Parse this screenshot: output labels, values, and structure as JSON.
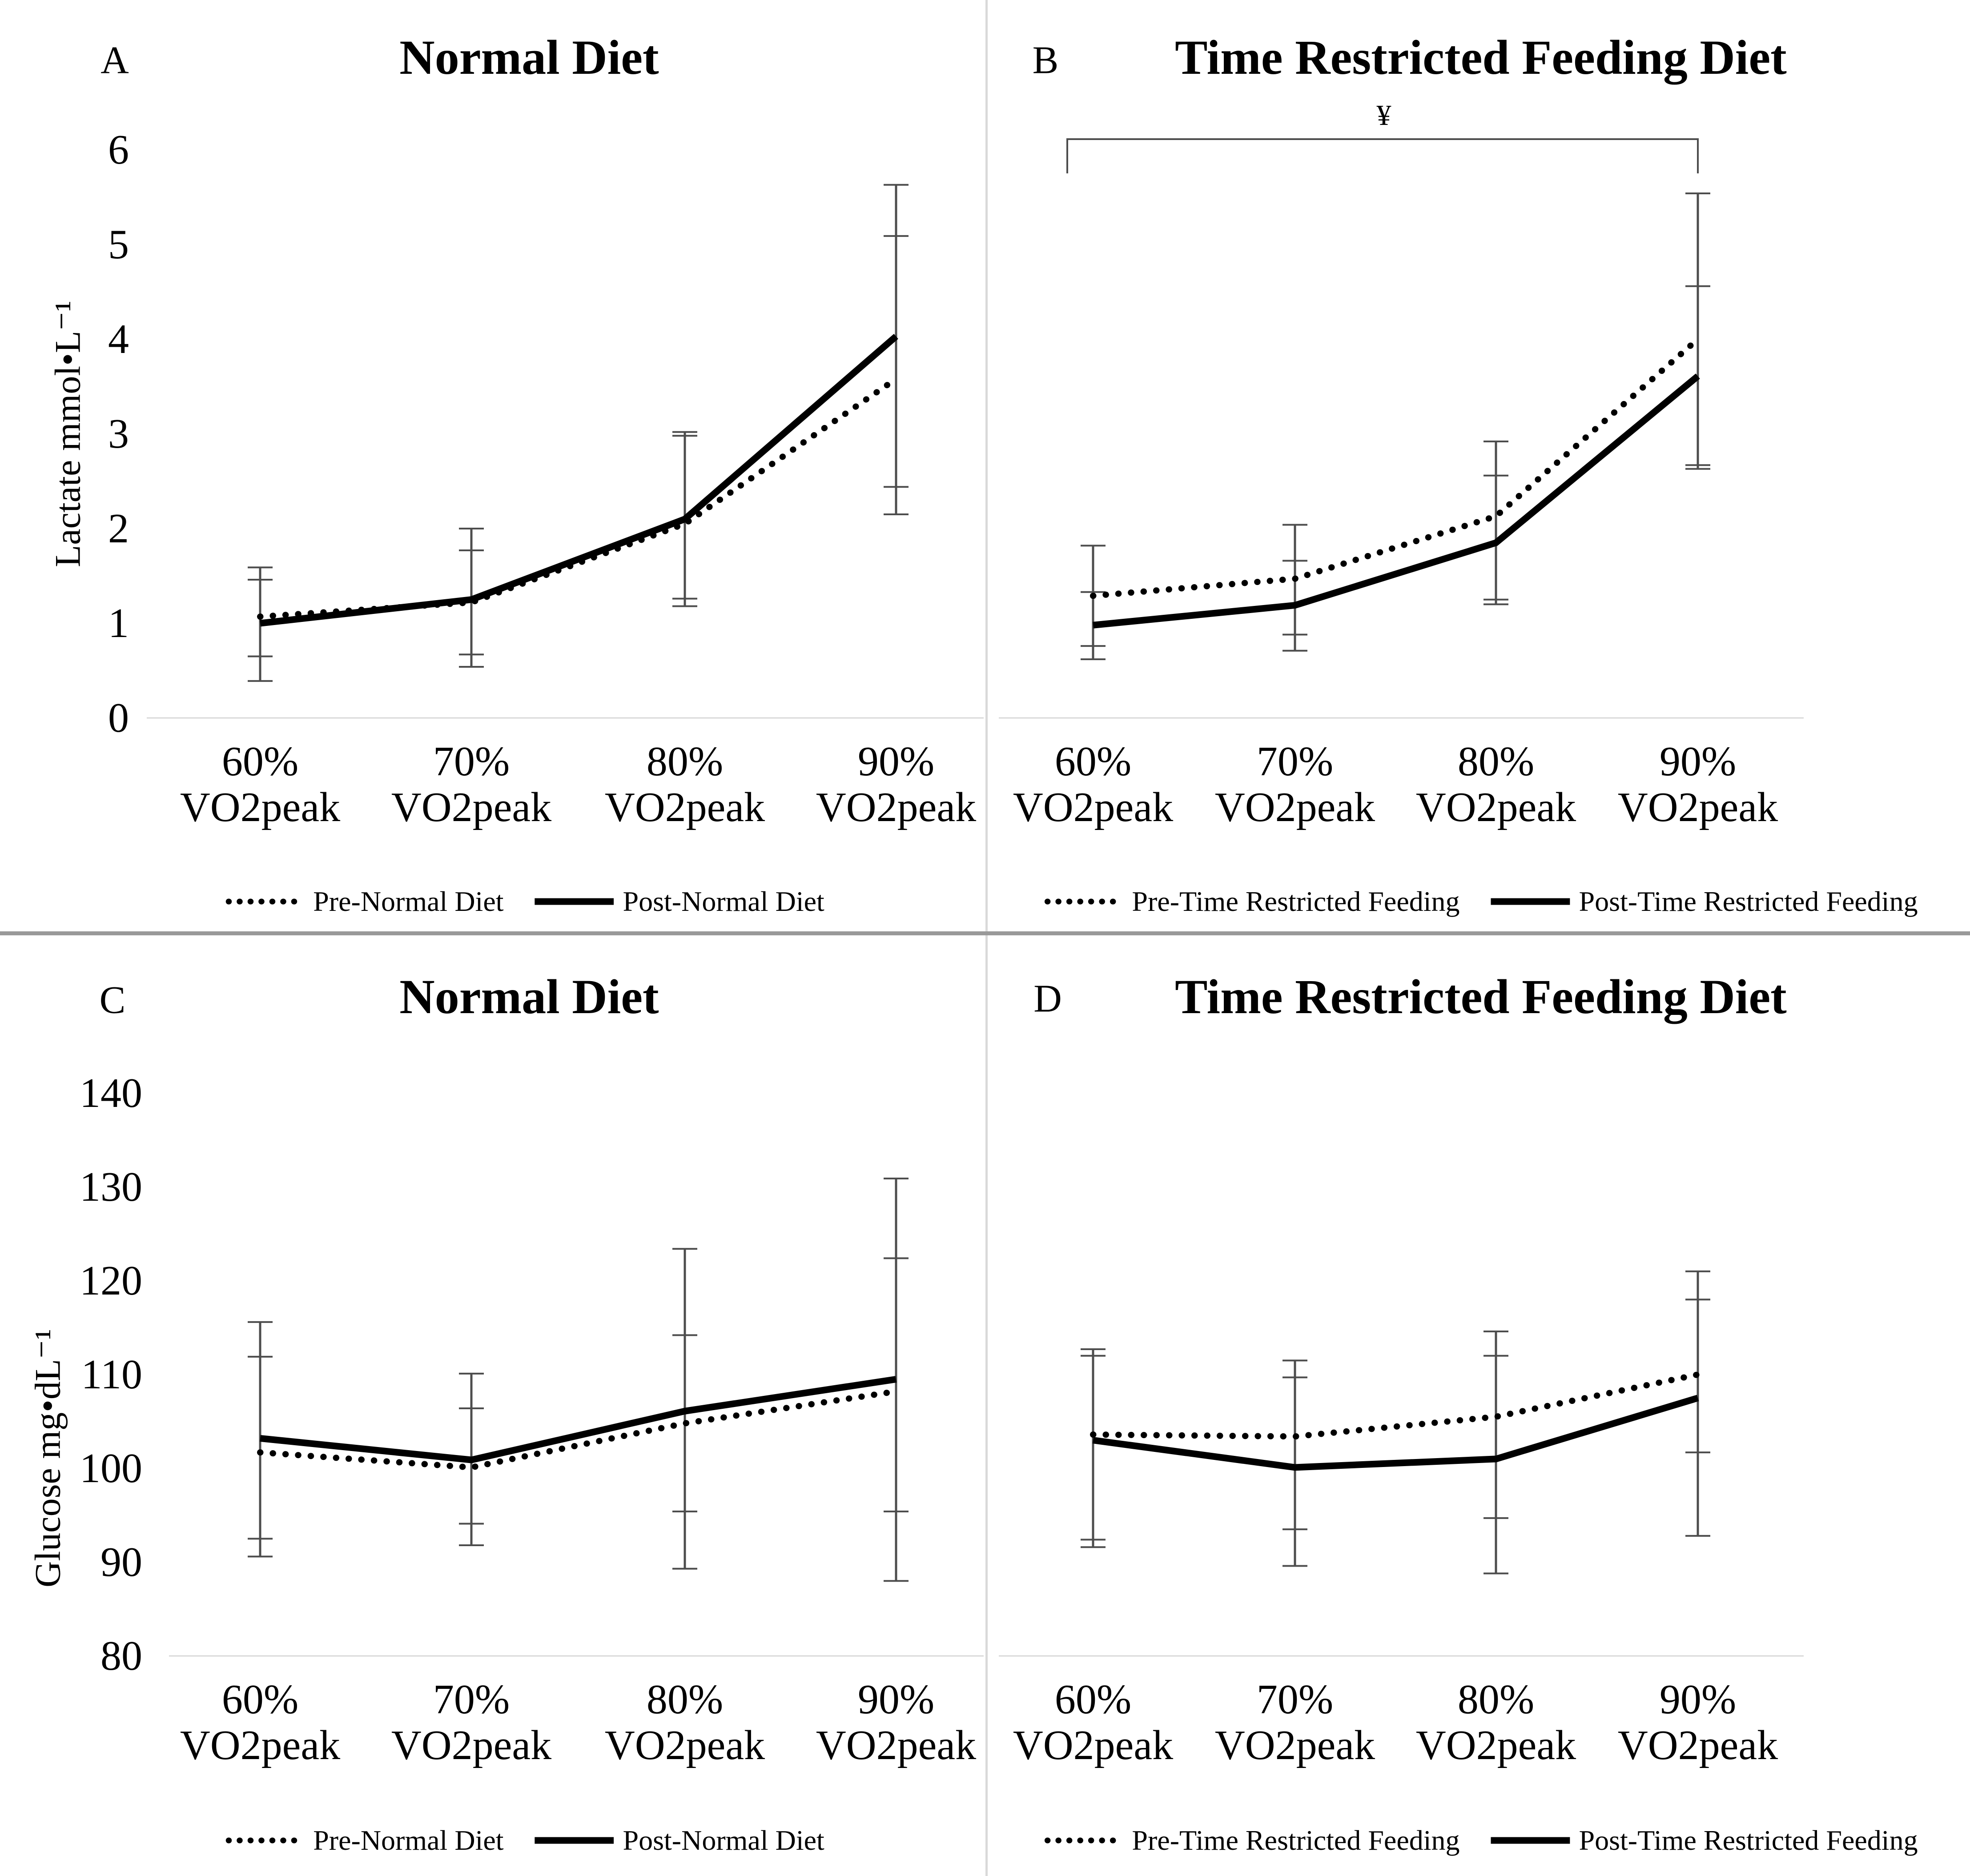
{
  "figure": {
    "background": "#ffffff",
    "text_color": "#000000",
    "line_color": "#000000",
    "error_bar_color": "#4d4d4d",
    "baseline_color": "#d9d9d9",
    "divider_color_vertical": "#d9d9d9",
    "divider_color_horizontal": "#999999"
  },
  "chart_data": [
    {
      "panel": "A",
      "type": "line",
      "title": "Normal Diet",
      "y_label": "Lactate mmol•L⁻¹",
      "y_ticks": [
        0,
        1,
        2,
        3,
        4,
        5,
        6
      ],
      "ylim": [
        0,
        6.2
      ],
      "grid": false,
      "legend_position": "bottom",
      "x_categories": [
        "60%",
        "70%",
        "80%",
        "90%"
      ],
      "x_category_unit": "VO2peak",
      "series": [
        {
          "name": "Pre-Normal Diet",
          "style": "dotted",
          "values": [
            1.07,
            1.22,
            2.05,
            3.58
          ],
          "err_low": [
            0.65,
            0.67,
            1.26,
            2.44
          ],
          "err_high": [
            1.46,
            1.77,
            2.98,
            5.09
          ]
        },
        {
          "name": "Post-Normal Diet",
          "style": "solid",
          "values": [
            1.0,
            1.25,
            2.1,
            4.03
          ],
          "err_low": [
            0.39,
            0.54,
            1.18,
            2.15
          ],
          "err_high": [
            1.59,
            2.0,
            3.02,
            5.63
          ]
        }
      ]
    },
    {
      "panel": "B",
      "type": "line",
      "title": "Time Restricted Feeding Diet",
      "y_label": "",
      "y_ticks": [],
      "ylim": [
        0,
        6.2
      ],
      "grid": false,
      "legend_position": "bottom",
      "x_categories": [
        "60%",
        "70%",
        "80%",
        "90%"
      ],
      "x_category_unit": "VO2peak",
      "annotation": {
        "symbol": "¥",
        "from_index": 0,
        "to_index": 3
      },
      "series": [
        {
          "name": "Pre-Time Restricted Feeding",
          "style": "dotted",
          "values": [
            1.29,
            1.47,
            2.13,
            4.0
          ],
          "err_low": [
            0.76,
            0.88,
            1.25,
            2.67
          ],
          "err_high": [
            1.82,
            2.04,
            2.56,
            4.56
          ]
        },
        {
          "name": "Post-Time Restricted Feeding",
          "style": "solid",
          "values": [
            0.98,
            1.19,
            1.85,
            3.61
          ],
          "err_low": [
            0.62,
            0.71,
            1.2,
            2.63
          ],
          "err_high": [
            1.33,
            1.66,
            2.92,
            5.54
          ]
        }
      ]
    },
    {
      "panel": "C",
      "type": "line",
      "title": "Normal Diet",
      "y_label": "Glucose mg•dL⁻¹",
      "y_ticks": [
        80,
        90,
        100,
        110,
        120,
        130,
        140
      ],
      "ylim": [
        80,
        145
      ],
      "grid": false,
      "legend_position": "bottom",
      "x_categories": [
        "60%",
        "70%",
        "80%",
        "90%"
      ],
      "x_category_unit": "VO2peak",
      "series": [
        {
          "name": "Pre-Normal Diet",
          "style": "dotted",
          "values": [
            101.7,
            100.1,
            104.8,
            108.2
          ],
          "err_low": [
            92.5,
            94.1,
            95.4,
            95.4
          ],
          "err_high": [
            111.9,
            106.4,
            114.2,
            122.4
          ]
        },
        {
          "name": "Post-Normal Diet",
          "style": "solid",
          "values": [
            103.2,
            100.9,
            106.1,
            109.5
          ],
          "err_low": [
            90.6,
            91.8,
            89.3,
            88.0
          ],
          "err_high": [
            115.6,
            110.1,
            123.4,
            130.9
          ]
        }
      ]
    },
    {
      "panel": "D",
      "type": "line",
      "title": "Time Restricted Feeding Diet",
      "y_label": "",
      "y_ticks": [],
      "ylim": [
        80,
        145
      ],
      "grid": false,
      "legend_position": "bottom",
      "x_categories": [
        "60%",
        "70%",
        "80%",
        "90%"
      ],
      "x_category_unit": "VO2peak",
      "series": [
        {
          "name": "Pre-Time Restricted Feeding",
          "style": "dotted",
          "values": [
            103.6,
            103.4,
            105.5,
            110.0
          ],
          "err_low": [
            92.4,
            93.5,
            94.7,
            101.7
          ],
          "err_high": [
            112.7,
            111.5,
            114.6,
            121.0
          ]
        },
        {
          "name": "Post-Time Restricted Feeding",
          "style": "solid",
          "values": [
            103.0,
            100.1,
            101.0,
            107.5
          ],
          "err_low": [
            91.6,
            89.6,
            88.8,
            92.8
          ],
          "err_high": [
            112.0,
            109.7,
            112.0,
            118.0
          ]
        }
      ]
    }
  ]
}
